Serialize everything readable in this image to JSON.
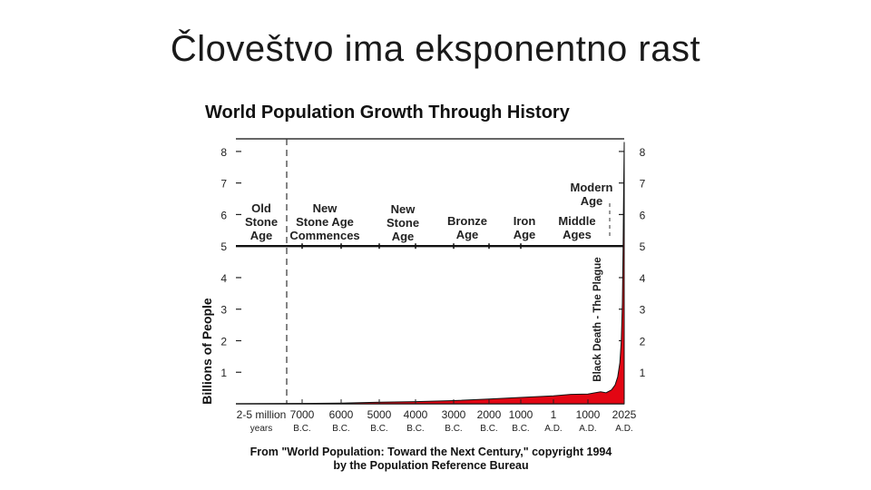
{
  "slide": {
    "title": "Človeštvo ima eksponentno rast"
  },
  "chart_data": {
    "type": "area",
    "title": "World Population Growth Through History",
    "ylabel": "Billions of People",
    "xlabel": "",
    "ylim": [
      0,
      8.4
    ],
    "y_ticks": [
      "1",
      "2",
      "3",
      "4",
      "5",
      "6",
      "7",
      "8"
    ],
    "x_tick_labels": [
      {
        "line1": "2-5 million",
        "line2": "years"
      },
      {
        "line1": "7000",
        "line2": "B.C."
      },
      {
        "line1": "6000",
        "line2": "B.C."
      },
      {
        "line1": "5000",
        "line2": "B.C."
      },
      {
        "line1": "4000",
        "line2": "B.C."
      },
      {
        "line1": "3000",
        "line2": "B.C."
      },
      {
        "line1": "2000",
        "line2": "B.C."
      },
      {
        "line1": "1000",
        "line2": "B.C."
      },
      {
        "line1": "1",
        "line2": "A.D."
      },
      {
        "line1": "1000",
        "line2": "A.D."
      },
      {
        "line1": "2025",
        "line2": "A.D."
      }
    ],
    "x_positions": [
      0,
      1,
      2,
      3,
      4,
      5,
      6,
      7,
      8,
      9,
      10
    ],
    "eras": [
      {
        "lines": [
          "Old",
          "Stone",
          "Age"
        ]
      },
      {
        "lines": [
          "New",
          "Stone Age",
          "Commences"
        ]
      },
      {
        "lines": [
          "New",
          "Stone",
          "Age"
        ]
      },
      {
        "lines": [
          "Bronze",
          "Age"
        ]
      },
      {
        "lines": [
          "Iron",
          "Age"
        ]
      },
      {
        "lines": [
          "Middle",
          "Ages"
        ]
      },
      {
        "lines": [
          "Modern",
          "Age"
        ]
      }
    ],
    "annotation": "Black Death - The Plague",
    "series": [
      {
        "values": [
          [
            0,
            0.0
          ],
          [
            0.95,
            0.01
          ],
          [
            1,
            0.01
          ],
          [
            2,
            0.02
          ],
          [
            3,
            0.05
          ],
          [
            4,
            0.07
          ],
          [
            5,
            0.1
          ],
          [
            6,
            0.15
          ],
          [
            7,
            0.2
          ],
          [
            8,
            0.25
          ],
          [
            8.5,
            0.3
          ],
          [
            9,
            0.31
          ],
          [
            9.35,
            0.38
          ],
          [
            9.5,
            0.35
          ],
          [
            9.65,
            0.44
          ],
          [
            9.75,
            0.6
          ],
          [
            9.82,
            0.85
          ],
          [
            9.88,
            1.3
          ],
          [
            9.92,
            2.0
          ],
          [
            9.95,
            3.2
          ],
          [
            9.97,
            5.0
          ],
          [
            9.985,
            6.8
          ],
          [
            10,
            8.3
          ]
        ]
      }
    ],
    "colors": {
      "fill": "#e30613",
      "axis": "#111111",
      "frame": "#333333"
    },
    "source": {
      "line1": "From \"World Population: Toward the Next Century,\" copyright 1994",
      "line2": "by the Population Reference Bureau"
    }
  }
}
